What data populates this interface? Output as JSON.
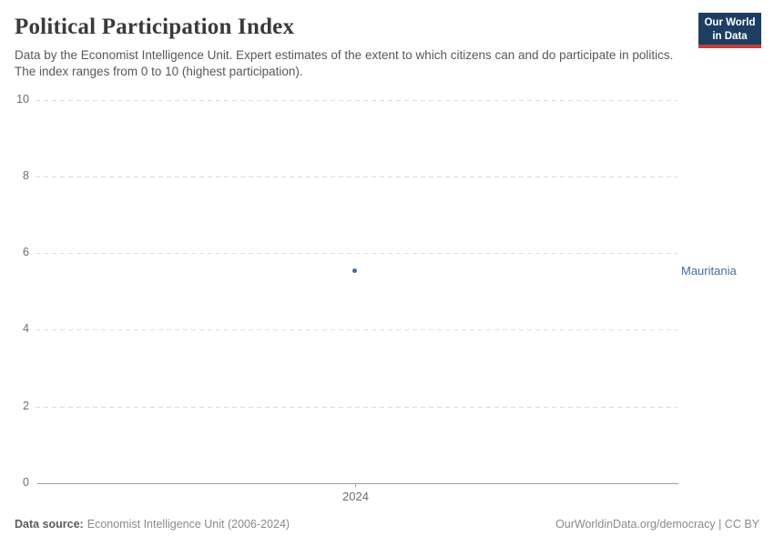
{
  "header": {
    "title": "Political Participation Index",
    "subtitle": "Data by the Economist Intelligence Unit. Expert estimates of the extent to which citizens can and do participate in politics. The index ranges from 0 to 10 (highest participation).",
    "logo": {
      "line1": "Our World",
      "line2": "in Data"
    }
  },
  "chart_data": {
    "type": "scatter",
    "title": "Political Participation Index",
    "x": [
      2024
    ],
    "series": [
      {
        "name": "Mauritania",
        "values": [
          5.56
        ],
        "color": "#4c6a9c"
      }
    ],
    "xlabel": "",
    "ylabel": "",
    "ylim": [
      0,
      10
    ],
    "xtick_labels": [
      "2024"
    ],
    "ytick_labels": [
      "10",
      "8",
      "6",
      "4",
      "2",
      "0"
    ],
    "grid": "horizontal dashed, solid baseline at 0",
    "legend_position": "label right of plot at point height",
    "annotations": [
      "Mauritania"
    ]
  },
  "footer": {
    "source_label": "Data source:",
    "source_text": "Economist Intelligence Unit (2006-2024)",
    "credit": "OurWorldinData.org/democracy | CC BY"
  },
  "colors": {
    "accent_blue": "#4c6a9c",
    "logo_navy": "#1d3d63",
    "logo_red": "#cf3b31",
    "gridline": "#dcdcdc",
    "axis": "#9e9e9e",
    "tick_text": "#6e6e6e"
  }
}
